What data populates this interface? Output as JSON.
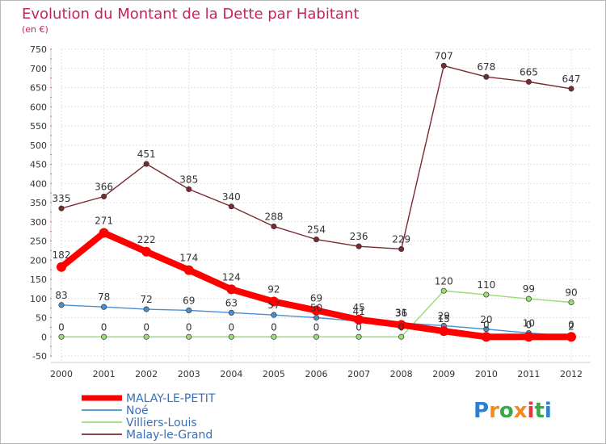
{
  "chart_data": {
    "type": "line",
    "title": "Evolution du Montant de la Dette par Habitant",
    "subtitle": "(en €)",
    "categories": [
      "2000",
      "2001",
      "2002",
      "2003",
      "2004",
      "2005",
      "2006",
      "2007",
      "2008",
      "2009",
      "2010",
      "2011",
      "2012"
    ],
    "ylim": [
      -50,
      750
    ],
    "yticks": [
      -50,
      0,
      50,
      100,
      150,
      200,
      250,
      300,
      350,
      400,
      450,
      500,
      550,
      600,
      650,
      700,
      750
    ],
    "grid": true,
    "legend_position": "bottom-left",
    "series": [
      {
        "name": "MALAY-LE-PETIT",
        "color": "#ff0000",
        "values": [
          182,
          271,
          222,
          174,
          124,
          92,
          69,
          45,
          31,
          15,
          0,
          0,
          0
        ],
        "labels": [
          "182",
          "271",
          "222",
          "174",
          "124",
          "92",
          "69",
          "45",
          "31",
          "15",
          "0",
          "0",
          "0"
        ]
      },
      {
        "name": "Noé",
        "color": "#4a8fd1",
        "values": [
          83,
          78,
          72,
          69,
          63,
          57,
          50,
          41,
          36,
          29,
          20,
          10,
          2
        ],
        "labels": [
          "83",
          "78",
          "72",
          "69",
          "63",
          "57",
          "50",
          "41",
          "36",
          "29",
          "20",
          "10",
          "2"
        ]
      },
      {
        "name": "Villiers-Louis",
        "color": "#99dd77",
        "values": [
          0,
          0,
          0,
          0,
          0,
          0,
          0,
          0,
          0,
          120,
          110,
          99,
          90
        ],
        "labels": [
          "0",
          "0",
          "0",
          "0",
          "0",
          "0",
          "0",
          "0",
          "0",
          "120",
          "110",
          "99",
          "90"
        ]
      },
      {
        "name": "Malay-le-Grand",
        "color": "#7a2a30",
        "values": [
          335,
          366,
          451,
          385,
          340,
          288,
          254,
          236,
          229,
          707,
          678,
          665,
          647
        ],
        "labels": [
          "335",
          "366",
          "451",
          "385",
          "340",
          "288",
          "254",
          "236",
          "229",
          "707",
          "678",
          "665",
          "647"
        ]
      }
    ]
  },
  "logo": {
    "letters": [
      "P",
      "r",
      "o",
      "x",
      "i",
      "t",
      "i"
    ],
    "colors": [
      "#2b7fd0",
      "#f28a1e",
      "#3aa94a",
      "#f28a1e",
      "#e23a3a",
      "#3aa94a",
      "#2b7fd0"
    ]
  }
}
